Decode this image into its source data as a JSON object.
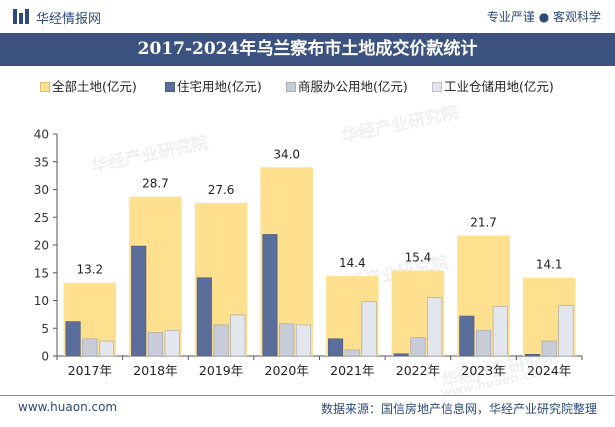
{
  "header": {
    "brand": "华经情报网",
    "slogan": "专业严谨 ● 客观科学"
  },
  "watermark": {
    "text": "华经产业研究院",
    "url": "www.huaon.com"
  },
  "footer": {
    "site": "www.huaon.com",
    "source": "数据来源：国信房地产信息网，华经产业研究院整理"
  },
  "colors": {
    "total": "#ffe08f",
    "residential": "#5b6d9a",
    "commercial": "#c8ccd8",
    "industrial": "#e4e6ee",
    "title_bar": "#3c5382",
    "brand": "#2c4a7c"
  },
  "chart_data": {
    "type": "bar",
    "title": "2017-2024年乌兰察布市土地成交价款统计",
    "categories": [
      "2017年",
      "2018年",
      "2019年",
      "2020年",
      "2021年",
      "2022年",
      "2023年",
      "2024年"
    ],
    "ylim": [
      0,
      40
    ],
    "yticks": [
      "0",
      "5",
      "10",
      "15",
      "20",
      "25",
      "30",
      "35",
      "40"
    ],
    "legend_position": "top",
    "grid": false,
    "series": [
      {
        "name": "全部土地(亿元)",
        "values": [
          13.2,
          28.7,
          27.6,
          34.0,
          14.4,
          15.4,
          21.7,
          14.1
        ],
        "labels": [
          "13.2",
          "28.7",
          "27.6",
          "34.0",
          "14.4",
          "15.4",
          "21.7",
          "14.1"
        ]
      },
      {
        "name": "住宅用地(亿元)",
        "values": [
          6.2,
          19.8,
          14.1,
          21.9,
          3.1,
          0.4,
          7.2,
          0.3
        ]
      },
      {
        "name": "商服办公用地(亿元)",
        "values": [
          3.1,
          4.2,
          5.6,
          5.8,
          1.1,
          3.3,
          4.6,
          2.7
        ]
      },
      {
        "name": "工业仓储用地(亿元)",
        "values": [
          2.7,
          4.6,
          7.4,
          5.6,
          9.8,
          10.5,
          8.9,
          9.1
        ]
      }
    ]
  }
}
